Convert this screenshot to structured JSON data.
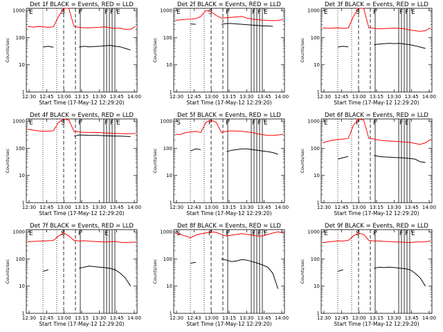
{
  "chart_data": [
    {
      "type": "line",
      "title": "Det 1f BLACK = Events, RED = LLD",
      "xlabel": "Start Time (17-May-12 12:29:20)",
      "ylabel": "Counts/sec",
      "xticks": [
        "12:30",
        "12:45",
        "13:00",
        "13:15",
        "13:30",
        "13:45",
        "14:00"
      ],
      "yticks": [
        "1",
        "10",
        "100",
        "1000"
      ],
      "ylim": [
        1,
        1200
      ],
      "yscale": "log",
      "markers": [
        "E",
        "S",
        "F",
        "F",
        "F",
        "E"
      ],
      "series": [
        {
          "color": "#ff0000",
          "values": [
            260,
            245,
            255,
            250,
            240,
            250,
            600,
            1200,
            1200,
            260,
            240,
            230,
            230,
            235,
            240,
            250,
            230,
            220,
            225,
            200,
            205,
            260
          ]
        },
        {
          "color": "#000000",
          "values": [
            null,
            null,
            null,
            45,
            48,
            44,
            null,
            null,
            null,
            null,
            45,
            48,
            46,
            47,
            48,
            50,
            52,
            48,
            46,
            40,
            35,
            null
          ]
        }
      ]
    },
    {
      "type": "line",
      "title": "Det 2f BLACK = Events, RED = LLD",
      "xlabel": "Start Time (17-May-12 12:29:20)",
      "ylabel": "Counts/sec",
      "xticks": [
        "12:30",
        "12:45",
        "13:00",
        "13:15",
        "13:30",
        "13:45",
        "14:00"
      ],
      "yticks": [
        "1",
        "10",
        "100",
        "1000"
      ],
      "ylim": [
        1,
        1200
      ],
      "yscale": "log",
      "markers": [
        "E",
        "S",
        "F",
        "F",
        "F",
        "E"
      ],
      "series": [
        {
          "color": "#ff0000",
          "values": [
            430,
            450,
            470,
            480,
            500,
            600,
            1000,
            900,
            650,
            520,
            540,
            560,
            580,
            600,
            520,
            480,
            460,
            440,
            430,
            420,
            430,
            460
          ]
        },
        {
          "color": "#000000",
          "values": [
            null,
            null,
            null,
            320,
            310,
            null,
            null,
            null,
            null,
            310,
            330,
            330,
            320,
            310,
            300,
            290,
            280,
            270,
            270,
            260,
            null,
            null
          ]
        }
      ]
    },
    {
      "type": "line",
      "title": "Det 3f BLACK = Events, RED = LLD",
      "xlabel": "Start Time (17-May-12 12:29:20)",
      "ylabel": "Counts/sec",
      "xticks": [
        "12:30",
        "12:45",
        "13:00",
        "13:15",
        "13:30",
        "13:45",
        "14:00"
      ],
      "yticks": [
        "1",
        "10",
        "100",
        "1000"
      ],
      "ylim": [
        1,
        1200
      ],
      "yscale": "log",
      "markers": [
        "E",
        "S",
        "F",
        "F",
        "F",
        "E"
      ],
      "series": [
        {
          "color": "#ff0000",
          "values": [
            230,
            220,
            225,
            230,
            220,
            225,
            600,
            1200,
            1200,
            230,
            220,
            210,
            215,
            220,
            225,
            220,
            210,
            190,
            180,
            170,
            180,
            230
          ]
        },
        {
          "color": "#000000",
          "values": [
            null,
            null,
            null,
            45,
            48,
            46,
            null,
            null,
            null,
            null,
            55,
            58,
            60,
            62,
            60,
            62,
            58,
            55,
            50,
            45,
            40,
            null
          ]
        }
      ]
    },
    {
      "type": "line",
      "title": "Det 4f BLACK = Events, RED = LLD",
      "xlabel": "Start Time (17-May-12 12:29:20)",
      "ylabel": "Counts/sec",
      "xticks": [
        "12:30",
        "12:45",
        "13:00",
        "13:15",
        "13:30",
        "13:45",
        "14:00"
      ],
      "yticks": [
        "1",
        "10",
        "100",
        "1000"
      ],
      "ylim": [
        1,
        1200
      ],
      "yscale": "log",
      "markers": [
        "E",
        "S",
        "F",
        "F",
        "F",
        "E"
      ],
      "series": [
        {
          "color": "#ff0000",
          "values": [
            500,
            470,
            440,
            420,
            430,
            440,
            900,
            1200,
            1100,
            420,
            400,
            390,
            380,
            385,
            380,
            370,
            360,
            350,
            350,
            340,
            345,
            350
          ]
        },
        {
          "color": "#000000",
          "values": [
            null,
            null,
            null,
            null,
            null,
            null,
            null,
            null,
            null,
            280,
            310,
            305,
            300,
            300,
            295,
            290,
            285,
            280,
            280,
            275,
            270,
            null
          ]
        }
      ]
    },
    {
      "type": "line",
      "title": "Det 5f BLACK = Events, RED = LLD",
      "xlabel": "Start Time (17-May-12 12:29:20)",
      "ylabel": "Counts/sec",
      "xticks": [
        "12:30",
        "12:43",
        "13:00",
        "13:15",
        "13:30",
        "13:45",
        "14:00"
      ],
      "yticks": [
        "1",
        "10",
        "100",
        "1000"
      ],
      "ylim": [
        1,
        1200
      ],
      "yscale": "log",
      "markers": [
        "S",
        "F",
        "F",
        "F",
        "F",
        "E"
      ],
      "series": [
        {
          "color": "#ff0000",
          "values": [
            330,
            320,
            380,
            400,
            420,
            380,
            900,
            1100,
            900,
            380,
            420,
            440,
            430,
            420,
            400,
            380,
            340,
            320,
            300,
            300,
            310,
            330
          ]
        },
        {
          "color": "#000000",
          "values": [
            null,
            null,
            null,
            80,
            95,
            90,
            null,
            null,
            null,
            null,
            75,
            85,
            90,
            95,
            95,
            90,
            85,
            80,
            75,
            70,
            60,
            null
          ]
        }
      ]
    },
    {
      "type": "line",
      "title": "Det 6f BLACK = Events, RED = LLD",
      "xlabel": "Start Time (17-May-12 12:29:20)",
      "ylabel": "Counts/sec",
      "xticks": [
        "12:30",
        "12:45",
        "13:00",
        "13:15",
        "13:30",
        "13:45",
        "14:00"
      ],
      "yticks": [
        "1",
        "10",
        "100",
        "1000"
      ],
      "ylim": [
        1,
        1200
      ],
      "yscale": "log",
      "markers": [
        "E",
        "F",
        "F",
        "F",
        "E"
      ],
      "series": [
        {
          "color": "#ff0000",
          "values": [
            160,
            180,
            200,
            210,
            220,
            230,
            700,
            1200,
            1100,
            230,
            220,
            200,
            190,
            185,
            180,
            175,
            170,
            165,
            150,
            140,
            160,
            210
          ]
        },
        {
          "color": "#000000",
          "values": [
            null,
            null,
            null,
            40,
            45,
            50,
            null,
            null,
            null,
            null,
            55,
            50,
            48,
            47,
            46,
            45,
            44,
            42,
            40,
            32,
            30,
            null
          ]
        }
      ]
    },
    {
      "type": "line",
      "title": "Det 7f BLACK = Events, RED = LLD",
      "xlabel": "Start Time (17-May-12 12:29:20)",
      "ylabel": "Counts/sec",
      "xticks": [
        "12:30",
        "12:45",
        "13:00",
        "13:15",
        "13:30",
        "13:45",
        "14:00"
      ],
      "yticks": [
        "1",
        "10",
        "100",
        "1000"
      ],
      "ylim": [
        1,
        1200
      ],
      "yscale": "log",
      "markers": [
        "E",
        "S",
        "F",
        "E"
      ],
      "series": [
        {
          "color": "#ff0000",
          "values": [
            430,
            440,
            450,
            460,
            470,
            480,
            700,
            900,
            700,
            480,
            460,
            470,
            450,
            440,
            430,
            420,
            430,
            440,
            410,
            400,
            410,
            420
          ]
        },
        {
          "color": "#000000",
          "values": [
            null,
            null,
            null,
            35,
            40,
            null,
            null,
            null,
            null,
            null,
            45,
            50,
            55,
            52,
            50,
            48,
            45,
            40,
            30,
            20,
            10,
            null
          ]
        }
      ]
    },
    {
      "type": "line",
      "title": "Det 8f BLACK = Events, RED = LLD",
      "xlabel": "Start Time (17-May-12 12:29:20)",
      "ylabel": "Counts/sec",
      "xticks": [
        "12:30",
        "12:43",
        "13:00",
        "13:15",
        "13:30",
        "13:45",
        "14:00"
      ],
      "yticks": [
        "1",
        "10",
        "100",
        "1000"
      ],
      "ylim": [
        1,
        1200
      ],
      "yscale": "log",
      "markers": [
        "S",
        "F",
        "F",
        "F",
        "F",
        "E"
      ],
      "series": [
        {
          "color": "#ff0000",
          "values": [
            900,
            800,
            700,
            600,
            750,
            850,
            900,
            1000,
            950,
            800,
            700,
            750,
            800,
            850,
            800,
            750,
            700,
            700,
            800,
            900,
            1000,
            900
          ]
        },
        {
          "color": "#000000",
          "values": [
            null,
            null,
            null,
            70,
            75,
            null,
            null,
            null,
            null,
            100,
            90,
            80,
            85,
            95,
            90,
            80,
            70,
            60,
            50,
            30,
            8,
            null
          ]
        }
      ]
    },
    {
      "type": "line",
      "title": "Det 9f BLACK = Events, RED = LLD",
      "xlabel": "Start Time (17-May-12 12:29:20)",
      "ylabel": "Counts/sec",
      "xticks": [
        "12:30",
        "12:45",
        "13:00",
        "13:15",
        "13:30",
        "13:45",
        "14:00"
      ],
      "yticks": [
        "1",
        "10",
        "100",
        "1000"
      ],
      "ylim": [
        1,
        1200
      ],
      "yscale": "log",
      "markers": [
        "E",
        "S",
        "F",
        "F",
        "F",
        "E"
      ],
      "series": [
        {
          "color": "#ff0000",
          "values": [
            400,
            420,
            440,
            460,
            460,
            480,
            700,
            900,
            800,
            480,
            460,
            460,
            440,
            440,
            420,
            420,
            410,
            400,
            420,
            420,
            430,
            460
          ]
        },
        {
          "color": "#000000",
          "values": [
            null,
            null,
            null,
            35,
            40,
            null,
            null,
            null,
            null,
            null,
            45,
            50,
            48,
            50,
            48,
            46,
            44,
            40,
            30,
            20,
            10,
            null
          ]
        }
      ]
    }
  ]
}
